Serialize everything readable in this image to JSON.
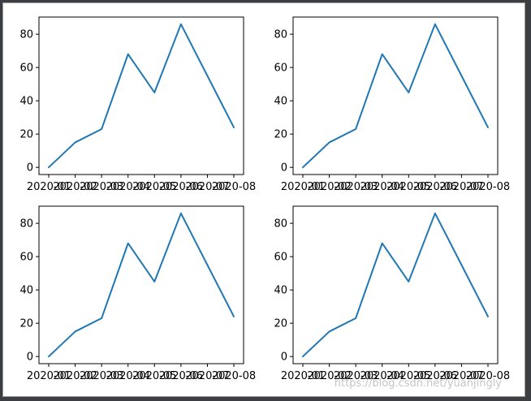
{
  "chart_data": [
    {
      "type": "line",
      "x": [
        "2020-01",
        "2020-02",
        "2020-03",
        "2020-04",
        "2020-05",
        "2020-06",
        "2020-07",
        "2020-08"
      ],
      "series": [
        {
          "values": [
            0,
            15,
            23,
            68,
            45,
            86,
            55,
            24
          ]
        }
      ],
      "yticks": [
        0,
        20,
        40,
        60,
        80
      ],
      "ylim": [
        -4.3,
        90.3
      ],
      "grid": false,
      "color": "#1f77b4"
    },
    {
      "type": "line",
      "x": [
        "2020-01",
        "2020-02",
        "2020-03",
        "2020-04",
        "2020-05",
        "2020-06",
        "2020-07",
        "2020-08"
      ],
      "series": [
        {
          "values": [
            0,
            15,
            23,
            68,
            45,
            86,
            55,
            24
          ]
        }
      ],
      "yticks": [
        0,
        20,
        40,
        60,
        80
      ],
      "ylim": [
        -4.3,
        90.3
      ],
      "grid": false,
      "color": "#1f77b4"
    },
    {
      "type": "line",
      "x": [
        "2020-01",
        "2020-02",
        "2020-03",
        "2020-04",
        "2020-05",
        "2020-06",
        "2020-07",
        "2020-08"
      ],
      "series": [
        {
          "values": [
            0,
            15,
            23,
            68,
            45,
            86,
            55,
            24
          ]
        }
      ],
      "yticks": [
        0,
        20,
        40,
        60,
        80
      ],
      "ylim": [
        -4.3,
        90.3
      ],
      "grid": false,
      "color": "#1f77b4"
    },
    {
      "type": "line",
      "x": [
        "2020-01",
        "2020-02",
        "2020-03",
        "2020-04",
        "2020-05",
        "2020-06",
        "2020-07",
        "2020-08"
      ],
      "series": [
        {
          "values": [
            0,
            15,
            23,
            68,
            45,
            86,
            55,
            24
          ]
        }
      ],
      "yticks": [
        0,
        20,
        40,
        60,
        80
      ],
      "ylim": [
        -4.3,
        90.3
      ],
      "grid": false,
      "color": "#1f77b4"
    }
  ],
  "watermark": "https://blog.csdn.net/yuanjingly"
}
